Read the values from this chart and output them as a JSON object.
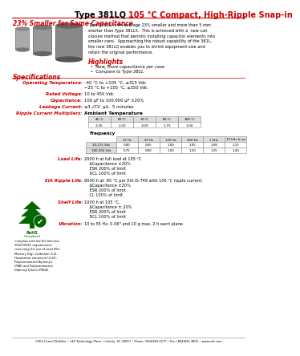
{
  "title_black": "Type 381LQ ",
  "title_red": "105 °C Compact, High-Ripple Snap-in",
  "subtitle": "23% Smaller for Same Capacitance",
  "body_text": "Type 381LQ is on average 23% smaller and more than 5 mm\nshorter than Type 381LX.  This is achieved with a  new can\nclosure method that permits installing capacitor elements into\nsmaller cans.  Approaching the robust capability of the 381L,\nthe new 381LQ enables you to shrink equipment size and\nretain the original performance.",
  "highlights_title": "Highlights",
  "highlights_bullets": [
    "New, more capacitance per case",
    "Compare to Type 381L"
  ],
  "specs_title": "Specifications",
  "spec_rows": [
    [
      "Operating Temperature:",
      "–40 °C to +105 °C, ≤315 Vdc\n−25 °C to +105 °C, ≥350 Vdc"
    ],
    [
      "Rated Voltage:",
      "10 to 450 Vdc"
    ],
    [
      "Capacitance:",
      "100 µF to 100,000 µF ±20%"
    ],
    [
      "Leakage Current:",
      "≤3 √CV  µA,  5 minutes"
    ],
    [
      "Ripple Current Multipliers:",
      "Ambient Temperature"
    ]
  ],
  "temp_table_headers": [
    "45°C",
    "60°C",
    "70°C",
    "85°C",
    "105°C"
  ],
  "temp_table_values": [
    "2.35",
    "2.20",
    "2.00",
    "1.75",
    "1.00"
  ],
  "freq_table_label": "Frequency",
  "freq_table_headers": [
    "25 Hz",
    "50 Hz",
    "120 Hz",
    "400 Hz",
    "1 kHz",
    "10 kHz & up"
  ],
  "freq_row1_label": "10-175 Vdc",
  "freq_row1_values": [
    "0.80",
    "0.85",
    "1.00",
    "1.05",
    "1.08",
    "1.15"
  ],
  "freq_row2_label": "180-450 Vdc",
  "freq_row2_values": [
    "0.75",
    "0.80",
    "1.00",
    "1.20",
    "1.25",
    "1.40"
  ],
  "load_life_label": "Load Life:",
  "load_life_text": "2000 h at full load at 105 °C\n    ΔCapacitance ±20%\n    ESR 200% of limit\n    DCL 100% of limit",
  "eia_label": "EIA Ripple Life:",
  "eia_text": "8000 h at  85 °C per EIA IS-749 with 105 °C ripple current.\n    ΔCapacitance ±20%\n    ESR 200% of limit\n    CL 100% of limit",
  "shelf_label": "Shelf Life:",
  "shelf_text": "1000 h at 105 °C,\n    ΔCapacitance ± 20%\n    ESR 200% of limit\n    DCL 100% of limit",
  "vibration_label": "Vibration:",
  "vibration_text": "10 to 55 Hz, 0.06\" and 10 g max, 2 h each plane",
  "footer_text": "CDE4 Cornell Dubilier • 140 Technology Place • Liberty, SC 29657 • Phone: (864)843-2277 • Fax: (864)843-3800 • www.cde.com",
  "rohs_text": "Complies with the EU Directive\n2002/95/EC requirements\nrestricting the use of Lead (Pb),\nMercury (Hg), Cadmium (Cd),\nHexavalent chromium (CrVI),\nPolybrominated Biphenyls\n(PBB) and Polybrominated\nDiphenyl Ethers (PBDE).",
  "color_red": "#CC0000",
  "color_green": "#006600",
  "bg_color": "#FFFFFF"
}
